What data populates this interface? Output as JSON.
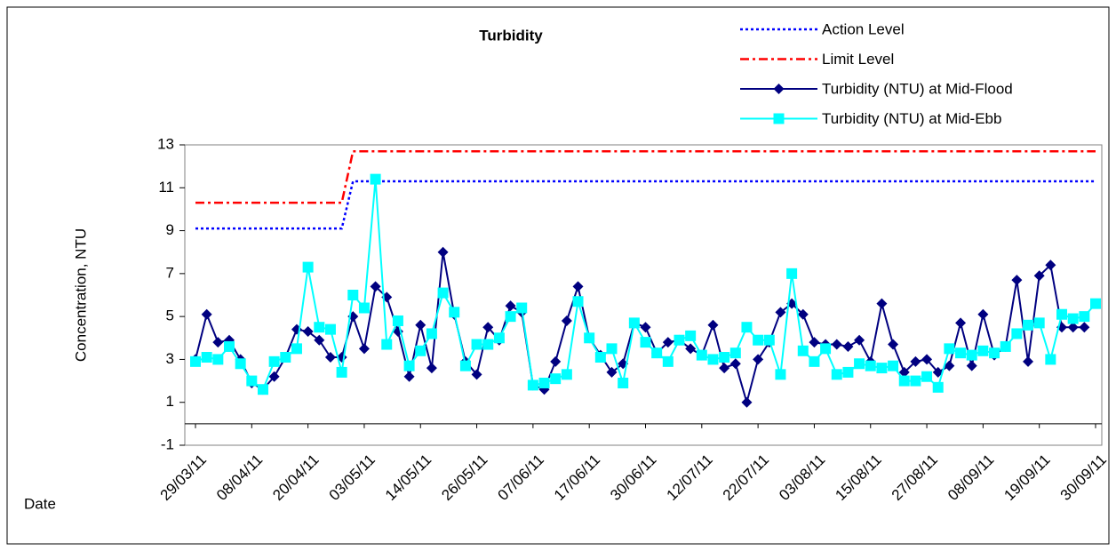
{
  "chart_data": {
    "type": "line",
    "title": "Turbidity",
    "y_label": "Concentration, NTU",
    "x_label": "Date",
    "categories": [
      "29/03/11",
      null,
      null,
      null,
      null,
      "08/04/11",
      null,
      null,
      null,
      null,
      "20/04/11",
      null,
      null,
      null,
      null,
      "03/05/11",
      null,
      null,
      null,
      null,
      "14/05/11",
      null,
      null,
      null,
      null,
      "26/05/11",
      null,
      null,
      null,
      null,
      "07/06/11",
      null,
      null,
      null,
      null,
      "17/06/11",
      null,
      null,
      null,
      null,
      "30/06/11",
      null,
      null,
      null,
      null,
      "12/07/11",
      null,
      null,
      null,
      null,
      "22/07/11",
      null,
      null,
      null,
      null,
      "03/08/11",
      null,
      null,
      null,
      null,
      "15/08/11",
      null,
      null,
      null,
      null,
      "27/08/11",
      null,
      null,
      null,
      null,
      "08/09/11",
      null,
      null,
      null,
      null,
      "19/09/11",
      null,
      null,
      null,
      null,
      "30/09/11"
    ],
    "ylim": [
      -1,
      13
    ],
    "yticks": [
      -1,
      1,
      3,
      5,
      7,
      9,
      11,
      13
    ],
    "legend": "top-right",
    "series": [
      {
        "name": "Action Level",
        "color": "#0000ff",
        "style": "dotted",
        "marker": "none",
        "values": [
          9.1,
          9.1,
          9.1,
          9.1,
          9.1,
          9.1,
          9.1,
          9.1,
          9.1,
          9.1,
          9.1,
          9.1,
          9.1,
          9.1,
          11.3,
          11.3,
          11.3,
          11.3,
          11.3,
          11.3,
          11.3,
          11.3,
          11.3,
          11.3,
          11.3,
          11.3,
          11.3,
          11.3,
          11.3,
          11.3,
          11.3,
          11.3,
          11.3,
          11.3,
          11.3,
          11.3,
          11.3,
          11.3,
          11.3,
          11.3,
          11.3,
          11.3,
          11.3,
          11.3,
          11.3,
          11.3,
          11.3,
          11.3,
          11.3,
          11.3,
          11.3,
          11.3,
          11.3,
          11.3,
          11.3,
          11.3,
          11.3,
          11.3,
          11.3,
          11.3,
          11.3,
          11.3,
          11.3,
          11.3,
          11.3,
          11.3,
          11.3,
          11.3,
          11.3,
          11.3,
          11.3,
          11.3,
          11.3,
          11.3,
          11.3,
          11.3,
          11.3,
          11.3,
          11.3,
          11.3,
          11.3
        ]
      },
      {
        "name": "Limit Level",
        "color": "#ff0000",
        "style": "dashdot",
        "marker": "none",
        "values": [
          10.3,
          10.3,
          10.3,
          10.3,
          10.3,
          10.3,
          10.3,
          10.3,
          10.3,
          10.3,
          10.3,
          10.3,
          10.3,
          10.3,
          12.7,
          12.7,
          12.7,
          12.7,
          12.7,
          12.7,
          12.7,
          12.7,
          12.7,
          12.7,
          12.7,
          12.7,
          12.7,
          12.7,
          12.7,
          12.7,
          12.7,
          12.7,
          12.7,
          12.7,
          12.7,
          12.7,
          12.7,
          12.7,
          12.7,
          12.7,
          12.7,
          12.7,
          12.7,
          12.7,
          12.7,
          12.7,
          12.7,
          12.7,
          12.7,
          12.7,
          12.7,
          12.7,
          12.7,
          12.7,
          12.7,
          12.7,
          12.7,
          12.7,
          12.7,
          12.7,
          12.7,
          12.7,
          12.7,
          12.7,
          12.7,
          12.7,
          12.7,
          12.7,
          12.7,
          12.7,
          12.7,
          12.7,
          12.7,
          12.7,
          12.7,
          12.7,
          12.7,
          12.7,
          12.7,
          12.7,
          12.7
        ]
      },
      {
        "name": "Turbidity (NTU) at Mid-Flood",
        "color": "#000080",
        "style": "solid",
        "marker": "diamond",
        "values": [
          3.0,
          5.1,
          3.8,
          3.9,
          3.0,
          1.9,
          1.6,
          2.2,
          3.1,
          4.4,
          4.3,
          3.9,
          3.1,
          3.1,
          5.0,
          3.5,
          6.4,
          5.9,
          4.3,
          2.2,
          4.6,
          2.6,
          8.0,
          5.1,
          2.9,
          2.3,
          4.5,
          3.9,
          5.5,
          5.2,
          1.8,
          1.6,
          2.9,
          4.8,
          6.4,
          4.0,
          3.2,
          2.4,
          2.8,
          4.7,
          4.5,
          3.3,
          3.8,
          3.9,
          3.5,
          3.2,
          4.6,
          2.6,
          2.8,
          1.0,
          3.0,
          3.8,
          5.2,
          5.6,
          5.1,
          3.8,
          3.7,
          3.7,
          3.6,
          3.9,
          2.9,
          5.6,
          3.7,
          2.4,
          2.9,
          3.0,
          2.4,
          2.7,
          4.7,
          2.7,
          5.1,
          3.2,
          3.6,
          6.7,
          2.9,
          6.9,
          7.4,
          4.5,
          4.5,
          4.5,
          null
        ]
      },
      {
        "name": "Turbidity (NTU) at Mid-Ebb",
        "color": "#00ffff",
        "style": "solid",
        "marker": "square",
        "values": [
          2.9,
          3.1,
          3.0,
          3.6,
          2.8,
          2.0,
          1.6,
          2.9,
          3.1,
          3.5,
          7.3,
          4.5,
          4.4,
          2.4,
          6.0,
          5.4,
          11.4,
          3.7,
          4.8,
          2.7,
          3.4,
          4.2,
          6.1,
          5.2,
          2.7,
          3.7,
          3.7,
          4.0,
          5.0,
          5.4,
          1.8,
          1.9,
          2.1,
          2.3,
          5.7,
          4.0,
          3.1,
          3.5,
          1.9,
          4.7,
          3.8,
          3.3,
          2.9,
          3.9,
          4.1,
          3.2,
          3.0,
          3.1,
          3.3,
          4.5,
          3.9,
          3.9,
          2.3,
          7.0,
          3.4,
          2.9,
          3.5,
          2.3,
          2.4,
          2.8,
          2.7,
          2.6,
          2.7,
          2.0,
          2.0,
          2.2,
          1.7,
          3.5,
          3.3,
          3.2,
          3.4,
          3.3,
          3.6,
          4.2,
          4.6,
          4.7,
          3.0,
          5.1,
          4.9,
          5.0,
          5.6
        ]
      }
    ]
  }
}
